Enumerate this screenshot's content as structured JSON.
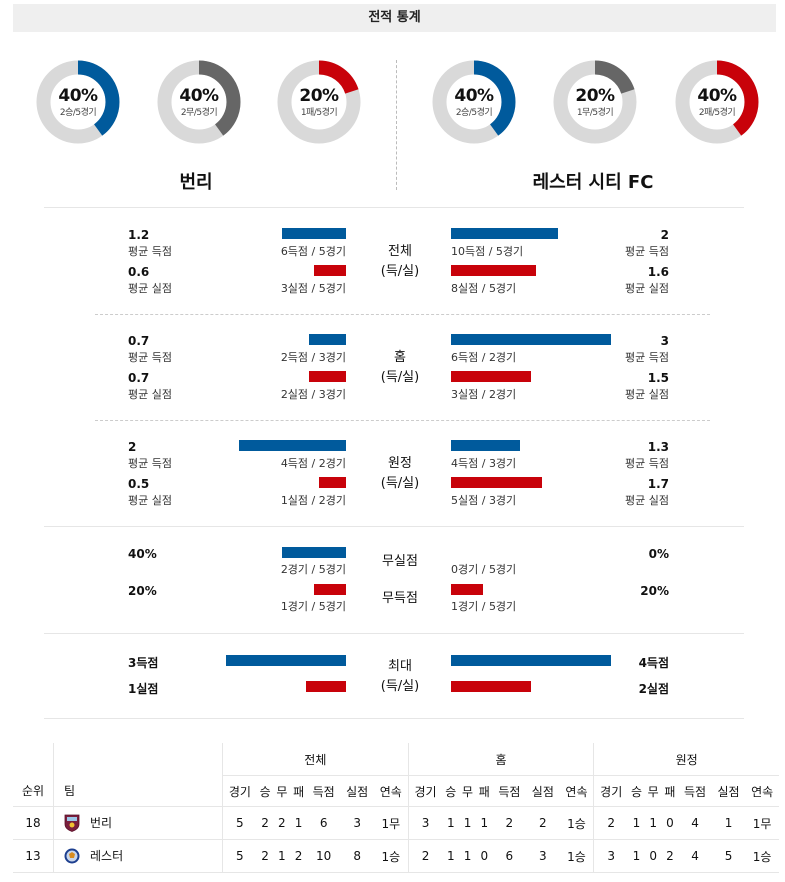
{
  "header": {
    "title": "전적 통계"
  },
  "colors": {
    "win": "#005a9c",
    "draw": "#666666",
    "loss": "#c8020a",
    "track": "#d9d9d9"
  },
  "teams": {
    "home": {
      "name": "번리",
      "donuts": [
        {
          "pct": "40%",
          "sub": "2승/5경기",
          "value": 0.4,
          "color": "#005a9c"
        },
        {
          "pct": "40%",
          "sub": "2무/5경기",
          "value": 0.4,
          "color": "#666666"
        },
        {
          "pct": "20%",
          "sub": "1패/5경기",
          "value": 0.2,
          "color": "#c8020a"
        }
      ]
    },
    "away": {
      "name": "레스터 시티 FC",
      "donuts": [
        {
          "pct": "40%",
          "sub": "2승/5경기",
          "value": 0.4,
          "color": "#005a9c"
        },
        {
          "pct": "20%",
          "sub": "1무/5경기",
          "value": 0.2,
          "color": "#666666"
        },
        {
          "pct": "40%",
          "sub": "2패/5경기",
          "value": 0.4,
          "color": "#c8020a"
        }
      ]
    }
  },
  "stats": {
    "total": {
      "label1": "전체",
      "label2": "(득/실)",
      "home": {
        "gf": "1.2",
        "gf_label": "평균 득점",
        "gf_sub": "6득점 / 5경기",
        "ga": "0.6",
        "ga_label": "평균 실점",
        "ga_sub": "3실점 / 5경기",
        "gf_bar": 1.2,
        "ga_bar": 0.6
      },
      "away": {
        "gf": "2",
        "gf_label": "평균 득점",
        "gf_sub": "10득점 / 5경기",
        "ga": "1.6",
        "ga_label": "평균 실점",
        "ga_sub": "8실점 / 5경기",
        "gf_bar": 2,
        "ga_bar": 1.6
      }
    },
    "home": {
      "label1": "홈",
      "label2": "(득/실)",
      "home": {
        "gf": "0.7",
        "gf_label": "평균 득점",
        "gf_sub": "2득점 / 3경기",
        "ga": "0.7",
        "ga_label": "평균 실점",
        "ga_sub": "2실점 / 3경기",
        "gf_bar": 0.7,
        "ga_bar": 0.7
      },
      "away": {
        "gf": "3",
        "gf_label": "평균 득점",
        "gf_sub": "6득점 / 2경기",
        "ga": "1.5",
        "ga_label": "평균 실점",
        "ga_sub": "3실점 / 2경기",
        "gf_bar": 3,
        "ga_bar": 1.5
      }
    },
    "away": {
      "label1": "원정",
      "label2": "(득/실)",
      "home": {
        "gf": "2",
        "gf_label": "평균 득점",
        "gf_sub": "4득점 / 2경기",
        "ga": "0.5",
        "ga_label": "평균 실점",
        "ga_sub": "1실점 / 2경기",
        "gf_bar": 2,
        "ga_bar": 0.5
      },
      "away": {
        "gf": "1.3",
        "gf_label": "평균 득점",
        "gf_sub": "4득점 / 3경기",
        "ga": "1.7",
        "ga_label": "평균 실점",
        "ga_sub": "5실점 / 3경기",
        "gf_bar": 1.3,
        "ga_bar": 1.7
      }
    },
    "clean": {
      "label_cs": "무실점",
      "label_fts": "무득점",
      "home": {
        "cs": "40%",
        "cs_sub": "2경기 / 5경기",
        "fts": "20%",
        "fts_sub": "1경기 / 5경기",
        "cs_bar": 0.4,
        "fts_bar": 0.2
      },
      "away": {
        "cs": "0%",
        "cs_sub": "0경기 / 5경기",
        "fts": "20%",
        "fts_sub": "1경기 / 5경기",
        "cs_bar": 0,
        "fts_bar": 0.2
      }
    },
    "max": {
      "label1": "최대",
      "label2": "(득/실)",
      "home": {
        "gf": "3득점",
        "ga": "1실점",
        "gf_bar": 3,
        "ga_bar": 1
      },
      "away": {
        "gf": "4득점",
        "ga": "2실점",
        "gf_bar": 4,
        "ga_bar": 2
      }
    }
  },
  "standings": {
    "groups": [
      "전체",
      "홈",
      "원정"
    ],
    "col_rank": "순위",
    "col_team": "팀",
    "cols": [
      "경기",
      "승",
      "무",
      "패",
      "득점",
      "실점",
      "연속"
    ],
    "rows": [
      {
        "rank": "18",
        "team": "번리",
        "crest": "burnley-crest-icon",
        "total": [
          "5",
          "2",
          "2",
          "1",
          "6",
          "3",
          "1무"
        ],
        "home": [
          "3",
          "1",
          "1",
          "1",
          "2",
          "2",
          "1승"
        ],
        "away": [
          "2",
          "1",
          "1",
          "0",
          "4",
          "1",
          "1무"
        ]
      },
      {
        "rank": "13",
        "team": "레스터",
        "crest": "leicester-crest-icon",
        "total": [
          "5",
          "2",
          "1",
          "2",
          "10",
          "8",
          "1승"
        ],
        "home": [
          "2",
          "1",
          "1",
          "0",
          "6",
          "3",
          "1승"
        ],
        "away": [
          "3",
          "1",
          "0",
          "2",
          "4",
          "5",
          "1승"
        ]
      }
    ]
  }
}
